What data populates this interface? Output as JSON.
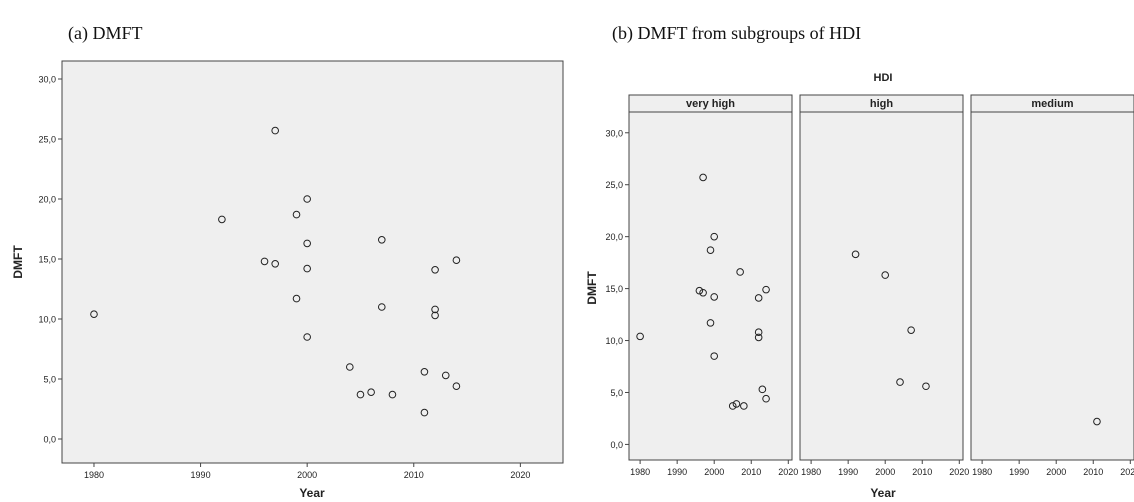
{
  "figure": {
    "panel_a_title": "(a) DMFT",
    "panel_b_title": "(b) DMFT from subgroups of HDI"
  },
  "chart_data": [
    {
      "type": "scatter",
      "title": "(a) DMFT",
      "xlabel": "Year",
      "ylabel": "DMFT",
      "xlim": [
        1977,
        2024
      ],
      "ylim": [
        -2,
        31.5
      ],
      "xticks": [
        1980,
        1990,
        2000,
        2010,
        2020
      ],
      "yticks": [
        0,
        5,
        10,
        15,
        20,
        25,
        30
      ],
      "xtick_labels": [
        "1980",
        "1990",
        "2000",
        "2010",
        "2020"
      ],
      "ytick_labels": [
        "0,0",
        "5,0",
        "10,0",
        "15,0",
        "20,0",
        "25,0",
        "30,0"
      ],
      "grid": false,
      "points": [
        {
          "x": 1980,
          "y": 10.4
        },
        {
          "x": 1992,
          "y": 18.3
        },
        {
          "x": 1996,
          "y": 14.8
        },
        {
          "x": 1997,
          "y": 14.6
        },
        {
          "x": 1997,
          "y": 25.7
        },
        {
          "x": 1999,
          "y": 18.7
        },
        {
          "x": 1999,
          "y": 11.7
        },
        {
          "x": 2000,
          "y": 20.0
        },
        {
          "x": 2000,
          "y": 16.3
        },
        {
          "x": 2000,
          "y": 14.2
        },
        {
          "x": 2000,
          "y": 8.5
        },
        {
          "x": 2004,
          "y": 6.0
        },
        {
          "x": 2005,
          "y": 3.7
        },
        {
          "x": 2006,
          "y": 3.9
        },
        {
          "x": 2007,
          "y": 16.6
        },
        {
          "x": 2007,
          "y": 11.0
        },
        {
          "x": 2008,
          "y": 3.7
        },
        {
          "x": 2011,
          "y": 5.6
        },
        {
          "x": 2011,
          "y": 2.2
        },
        {
          "x": 2012,
          "y": 14.1
        },
        {
          "x": 2012,
          "y": 10.8
        },
        {
          "x": 2012,
          "y": 10.3
        },
        {
          "x": 2013,
          "y": 5.3
        },
        {
          "x": 2014,
          "y": 14.9
        },
        {
          "x": 2014,
          "y": 4.4
        }
      ]
    },
    {
      "type": "scatter",
      "title": "(b) DMFT from subgroups of HDI",
      "facet_title": "HDI",
      "xlabel": "Year",
      "ylabel": "DMFT",
      "xlim": [
        1977,
        2021
      ],
      "ylim": [
        -1.5,
        32
      ],
      "xticks": [
        1980,
        1990,
        2000,
        2010,
        2020
      ],
      "yticks": [
        0,
        5,
        10,
        15,
        20,
        25,
        30
      ],
      "xtick_labels": [
        "1980",
        "1990",
        "2000",
        "2010",
        "2020"
      ],
      "ytick_labels": [
        "0,0",
        "5,0",
        "10,0",
        "15,0",
        "20,0",
        "25,0",
        "30,0"
      ],
      "grid": false,
      "facets": [
        {
          "name": "very high",
          "points": [
            {
              "x": 1980,
              "y": 10.4
            },
            {
              "x": 1996,
              "y": 14.8
            },
            {
              "x": 1997,
              "y": 14.6
            },
            {
              "x": 1997,
              "y": 25.7
            },
            {
              "x": 1999,
              "y": 18.7
            },
            {
              "x": 1999,
              "y": 11.7
            },
            {
              "x": 2000,
              "y": 20.0
            },
            {
              "x": 2000,
              "y": 14.2
            },
            {
              "x": 2000,
              "y": 8.5
            },
            {
              "x": 2005,
              "y": 3.7
            },
            {
              "x": 2006,
              "y": 3.9
            },
            {
              "x": 2007,
              "y": 16.6
            },
            {
              "x": 2008,
              "y": 3.7
            },
            {
              "x": 2012,
              "y": 14.1
            },
            {
              "x": 2012,
              "y": 10.8
            },
            {
              "x": 2012,
              "y": 10.3
            },
            {
              "x": 2013,
              "y": 5.3
            },
            {
              "x": 2014,
              "y": 14.9
            },
            {
              "x": 2014,
              "y": 4.4
            }
          ]
        },
        {
          "name": "high",
          "points": [
            {
              "x": 1992,
              "y": 18.3
            },
            {
              "x": 2000,
              "y": 16.3
            },
            {
              "x": 2004,
              "y": 6.0
            },
            {
              "x": 2007,
              "y": 11.0
            },
            {
              "x": 2011,
              "y": 5.6
            }
          ]
        },
        {
          "name": "medium",
          "points": [
            {
              "x": 2011,
              "y": 2.2
            }
          ]
        }
      ]
    }
  ]
}
